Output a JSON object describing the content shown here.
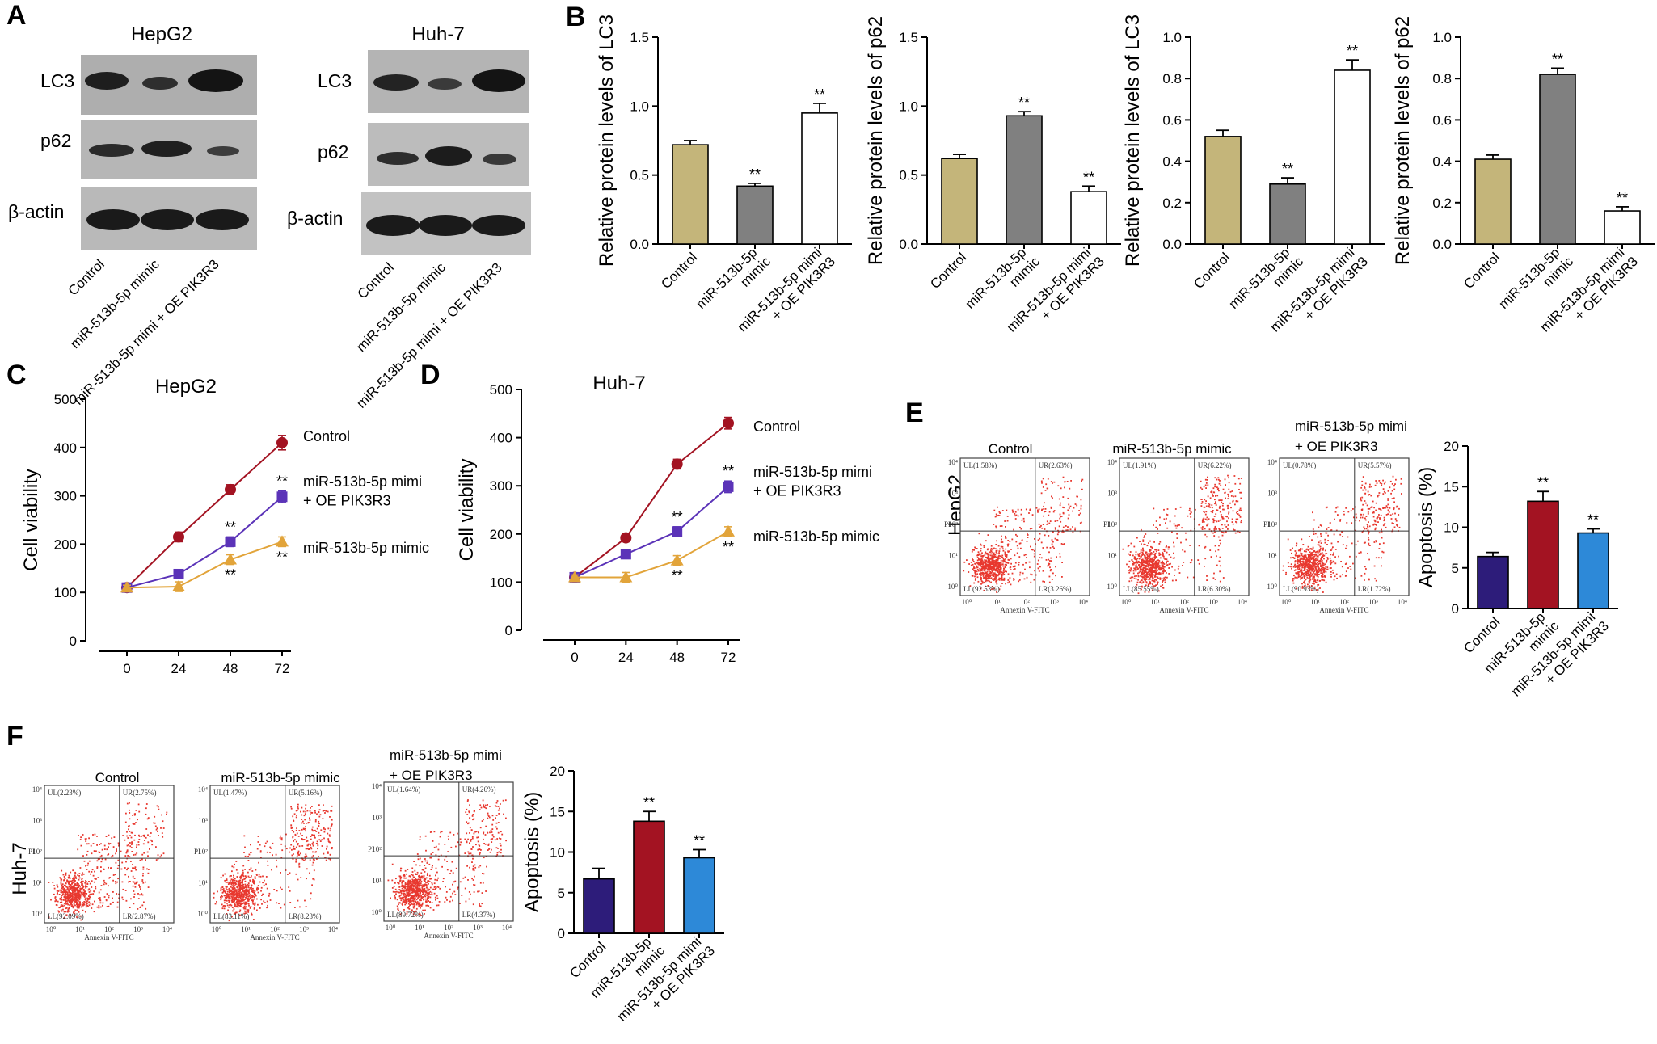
{
  "colors": {
    "tan": "#c4b57a",
    "gray": "#808080",
    "white": "#ffffff",
    "dark_red": "#a31322",
    "purple": "#5b33b8",
    "orange": "#e2a43a",
    "navy": "#2d1c7a",
    "blue": "#2d89d8",
    "dots": "#e8382f"
  },
  "panel_letters": {
    "a": "A",
    "b": "B",
    "c": "C",
    "d": "D",
    "e": "E",
    "f": "F"
  },
  "blots": {
    "hepg2_title": "HepG2",
    "huh7_title": "Huh-7",
    "rows": [
      "LC3",
      "p62",
      "β-actin"
    ],
    "lanes": [
      "Control",
      "miR-513b-5p mimic",
      "miR-513b-5p mimi + OE PIK3R3"
    ]
  },
  "icons": {
    "blot": "western-blot-band",
    "fcs": "flow-cytometry-scatter"
  },
  "flow": {
    "x_axis_label": "Annexin V-FITC",
    "y_axis_label": "PI",
    "ticks": [
      "10⁰",
      "10¹",
      "10²",
      "10³",
      "10⁴"
    ],
    "hepg2": {
      "row_label": "HepG2",
      "plots": [
        {
          "title": "Control",
          "UL": "UL(1.58%)",
          "UR": "UR(2.63%)",
          "LL": "LL(92.53%)",
          "LR": "LR(3.26%)"
        },
        {
          "title": "miR-513b-5p mimic",
          "UL": "UL(1.91%)",
          "UR": "UR(6.22%)",
          "LL": "LL(85.55%)",
          "LR": "LR(6.30%)"
        },
        {
          "title": "miR-513b-5p mimi + OE PIK3R3",
          "UL": "UL(0.78%)",
          "UR": "UR(5.57%)",
          "LL": "LL(90.93%)",
          "LR": "LR(1.72%)"
        }
      ]
    },
    "huh7": {
      "row_label": "Huh-7",
      "plots": [
        {
          "title": "Control",
          "UL": "UL(2.23%)",
          "UR": "UR(2.75%)",
          "LL": "LL(92.09%)",
          "LR": "LR(2.87%)"
        },
        {
          "title": "miR-513b-5p mimic",
          "UL": "UL(1.47%)",
          "UR": "UR(5.16%)",
          "LL": "LL(83.11%)",
          "LR": "LR(8.23%)"
        },
        {
          "title": "miR-513b-5p mimi + OE PIK3R3",
          "UL": "UL(1.64%)",
          "UR": "UR(4.26%)",
          "LL": "LL(89.72%)",
          "LR": "LR(4.37%)"
        }
      ]
    }
  },
  "chart_data": [
    {
      "id": "B1",
      "type": "bar",
      "panel": "B",
      "ylabel": "Relative protein levels of LC3",
      "ylim": [
        0,
        1.5
      ],
      "yticks": [
        "0.0",
        "0.5",
        "1.0",
        "1.5"
      ],
      "categories": [
        "Control",
        "miR-513b-5p mimic",
        "miR-513b-5p mimi + OE PIK3R3"
      ],
      "values": [
        0.72,
        0.42,
        0.95
      ],
      "errors": [
        0.03,
        0.02,
        0.07
      ],
      "colors": [
        "#c4b57a",
        "#808080",
        "#ffffff"
      ],
      "annotations": [
        "",
        "**",
        "**"
      ]
    },
    {
      "id": "B2",
      "type": "bar",
      "panel": "B",
      "ylabel": "Relative protein levels of p62",
      "ylim": [
        0,
        1.5
      ],
      "yticks": [
        "0.0",
        "0.5",
        "1.0",
        "1.5"
      ],
      "categories": [
        "Control",
        "miR-513b-5p mimic",
        "miR-513b-5p mimi + OE PIK3R3"
      ],
      "values": [
        0.62,
        0.93,
        0.38
      ],
      "errors": [
        0.03,
        0.03,
        0.04
      ],
      "colors": [
        "#c4b57a",
        "#808080",
        "#ffffff"
      ],
      "annotations": [
        "",
        "**",
        "**"
      ]
    },
    {
      "id": "B3",
      "type": "bar",
      "panel": "B",
      "ylabel": "Relative protein levels of LC3",
      "ylim": [
        0,
        1.0
      ],
      "yticks": [
        "0.0",
        "0.2",
        "0.4",
        "0.6",
        "0.8",
        "1.0"
      ],
      "categories": [
        "Control",
        "miR-513b-5p mimic",
        "miR-513b-5p mimi + OE PIK3R3"
      ],
      "values": [
        0.52,
        0.29,
        0.84
      ],
      "errors": [
        0.03,
        0.03,
        0.05
      ],
      "colors": [
        "#c4b57a",
        "#808080",
        "#ffffff"
      ],
      "annotations": [
        "",
        "**",
        "**"
      ]
    },
    {
      "id": "B4",
      "type": "bar",
      "panel": "B",
      "ylabel": "Relative protein levels of p62",
      "ylim": [
        0,
        1.0
      ],
      "yticks": [
        "0.0",
        "0.2",
        "0.4",
        "0.6",
        "0.8",
        "1.0"
      ],
      "categories": [
        "Control",
        "miR-513b-5p mimic",
        "miR-513b-5p mimi + OE PIK3R3"
      ],
      "values": [
        0.41,
        0.82,
        0.16
      ],
      "errors": [
        0.02,
        0.03,
        0.02
      ],
      "colors": [
        "#c4b57a",
        "#808080",
        "#ffffff"
      ],
      "annotations": [
        "",
        "**",
        "**"
      ]
    },
    {
      "id": "C",
      "type": "line",
      "panel": "C",
      "title": "HepG2",
      "ylabel": "Cell viability",
      "x": [
        0,
        24,
        48,
        72
      ],
      "ylim": [
        0,
        500
      ],
      "yticks": [
        0,
        100,
        200,
        300,
        400,
        500
      ],
      "series": [
        {
          "name": "Control",
          "values": [
            110,
            215,
            313,
            410
          ],
          "errors": [
            5,
            10,
            10,
            15
          ],
          "color": "#a31322",
          "marker": "circle",
          "annotations": [
            "",
            "",
            "",
            ""
          ]
        },
        {
          "name": "miR-513b-5p mimi + OE PIK3R3",
          "values": [
            110,
            138,
            205,
            298
          ],
          "errors": [
            5,
            8,
            10,
            12
          ],
          "color": "#5b33b8",
          "marker": "square",
          "annotations": [
            "",
            "",
            "**",
            "**"
          ]
        },
        {
          "name": "miR-513b-5p mimic",
          "values": [
            110,
            112,
            168,
            205
          ],
          "errors": [
            5,
            10,
            10,
            10
          ],
          "color": "#e2a43a",
          "marker": "triangle",
          "annotations": [
            "",
            "",
            "**",
            "**"
          ]
        }
      ]
    },
    {
      "id": "D",
      "type": "line",
      "panel": "D",
      "title": "Huh-7",
      "ylabel": "Cell viability",
      "x": [
        0,
        24,
        48,
        72
      ],
      "ylim": [
        0,
        500
      ],
      "yticks": [
        0,
        100,
        200,
        300,
        400,
        500
      ],
      "series": [
        {
          "name": "Control",
          "values": [
            110,
            192,
            345,
            430
          ],
          "errors": [
            5,
            8,
            10,
            12
          ],
          "color": "#a31322",
          "marker": "circle",
          "annotations": [
            "",
            "",
            "",
            ""
          ]
        },
        {
          "name": "miR-513b-5p mimi + OE PIK3R3",
          "values": [
            110,
            158,
            205,
            298
          ],
          "errors": [
            5,
            8,
            10,
            12
          ],
          "color": "#5b33b8",
          "marker": "square",
          "annotations": [
            "",
            "",
            "**",
            "**"
          ]
        },
        {
          "name": "miR-513b-5p mimic",
          "values": [
            110,
            110,
            145,
            205
          ],
          "errors": [
            5,
            10,
            10,
            10
          ],
          "color": "#e2a43a",
          "marker": "triangle",
          "annotations": [
            "",
            "",
            "**",
            "**"
          ]
        }
      ]
    },
    {
      "id": "E",
      "type": "bar",
      "panel": "E",
      "ylabel": "Apoptosis (%)",
      "ylim": [
        0,
        20
      ],
      "yticks": [
        "0",
        "5",
        "10",
        "15",
        "20"
      ],
      "categories": [
        "Control",
        "miR-513b-5p mimic",
        "miR-513b-5p mimi + OE PIK3R3"
      ],
      "values": [
        6.4,
        13.2,
        9.3
      ],
      "errors": [
        0.5,
        1.2,
        0.5
      ],
      "colors": [
        "#2d1c7a",
        "#a31322",
        "#2d89d8"
      ],
      "annotations": [
        "",
        "**",
        "**"
      ]
    },
    {
      "id": "F",
      "type": "bar",
      "panel": "F",
      "ylabel": "Apoptosis (%)",
      "ylim": [
        0,
        20
      ],
      "yticks": [
        "0",
        "5",
        "10",
        "15",
        "20"
      ],
      "categories": [
        "Control",
        "miR-513b-5p mimic",
        "miR-513b-5p mimi + OE PIK3R3"
      ],
      "values": [
        6.7,
        13.8,
        9.3
      ],
      "errors": [
        1.3,
        1.2,
        1.0
      ],
      "colors": [
        "#2d1c7a",
        "#a31322",
        "#2d89d8"
      ],
      "annotations": [
        "",
        "**",
        "**"
      ]
    }
  ]
}
